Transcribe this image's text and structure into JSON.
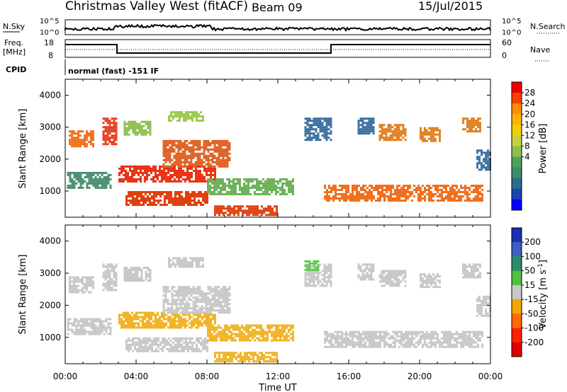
{
  "header": {
    "title": "Christmas Valley West (fitACF)",
    "beam": "Beam 09",
    "date": "15/Jul/2015"
  },
  "top_panels": {
    "nsky_label": "N.Sky",
    "nsky_ticks": [
      "10^5",
      "10^0"
    ],
    "nsearch_label": "N.Search",
    "nsearch_ticks": [
      "10^5",
      "10^0"
    ],
    "freq_label": "Freq.",
    "freq_unit": "[MHz]",
    "freq_ticks": [
      "18",
      "8"
    ],
    "nave_label": "Nave",
    "nave_ticks": [
      "60",
      "0"
    ],
    "cpid_label": "CPID",
    "cpid_text": "normal (fast) -151 IF"
  },
  "chart_data": [
    {
      "type": "heatmap",
      "ylabel": "Slant Range [km]",
      "xlabel": "Time UT",
      "x_ticks": [
        "00:00",
        "04:00",
        "08:00",
        "12:00",
        "16:00",
        "20:00",
        "00:00"
      ],
      "y_ticks": [
        4000,
        3000,
        2000,
        1000
      ],
      "xlim_hours": [
        0,
        24
      ],
      "ylim_km": [
        180,
        4500
      ],
      "colorbar": {
        "label": "Power [dB]",
        "ticks": [
          28,
          24,
          20,
          16,
          12,
          8,
          4
        ],
        "colors": [
          "#ee0000",
          "#ff4000",
          "#ff8c00",
          "#ffb000",
          "#f0d000",
          "#c8d040",
          "#8cc050",
          "#50a060",
          "#3c8c6c",
          "#2a6c8c",
          "#1a44b4",
          "#0000ff"
        ]
      },
      "regions": [
        {
          "x": [
            0.2,
            1.6
          ],
          "y": [
            2400,
            2900
          ],
          "color": "#f07020"
        },
        {
          "x": [
            2.1,
            2.9
          ],
          "y": [
            2500,
            3300
          ],
          "color": "#e84020"
        },
        {
          "x": [
            0.1,
            2.6
          ],
          "y": [
            1100,
            1600
          ],
          "color": "#4a9070"
        },
        {
          "x": [
            3.0,
            8.5
          ],
          "y": [
            1300,
            1800
          ],
          "color": "#e83010"
        },
        {
          "x": [
            5.5,
            9.3
          ],
          "y": [
            1800,
            2600
          ],
          "color": "#e06020"
        },
        {
          "x": [
            3.3,
            4.8
          ],
          "y": [
            2800,
            3200
          ],
          "color": "#8cc050"
        },
        {
          "x": [
            5.8,
            7.8
          ],
          "y": [
            3200,
            3500
          ],
          "color": "#a0c850"
        },
        {
          "x": [
            3.4,
            8.0
          ],
          "y": [
            600,
            1000
          ],
          "color": "#e04010"
        },
        {
          "x": [
            8.0,
            12.9
          ],
          "y": [
            900,
            1400
          ],
          "color": "#6cb058"
        },
        {
          "x": [
            8.4,
            12.0
          ],
          "y": [
            250,
            550
          ],
          "color": "#e04010"
        },
        {
          "x": [
            13.5,
            15.0
          ],
          "y": [
            2600,
            3300
          ],
          "color": "#3c70a0"
        },
        {
          "x": [
            14.6,
            23.5
          ],
          "y": [
            700,
            1200
          ],
          "color": "#f07020"
        },
        {
          "x": [
            16.5,
            17.4
          ],
          "y": [
            2800,
            3300
          ],
          "color": "#3c70a0"
        },
        {
          "x": [
            17.7,
            19.2
          ],
          "y": [
            2600,
            3100
          ],
          "color": "#e08020"
        },
        {
          "x": [
            20.0,
            21.2
          ],
          "y": [
            2600,
            3000
          ],
          "color": "#e08020"
        },
        {
          "x": [
            22.4,
            23.4
          ],
          "y": [
            2900,
            3300
          ],
          "color": "#e08020"
        },
        {
          "x": [
            23.2,
            24.0
          ],
          "y": [
            1700,
            2300
          ],
          "color": "#3c70a0"
        }
      ]
    },
    {
      "type": "heatmap",
      "ylabel": "Slant Range [km]",
      "xlabel": "Time UT",
      "x_ticks": [
        "00:00",
        "04:00",
        "08:00",
        "12:00",
        "16:00",
        "20:00",
        "00:00"
      ],
      "y_ticks": [
        4000,
        3000,
        2000,
        1000
      ],
      "xlim_hours": [
        0,
        24
      ],
      "ylim_km": [
        180,
        4500
      ],
      "colorbar": {
        "label": "Velocity [m s^-1]",
        "ticks": [
          200,
          100,
          50,
          15,
          -15,
          -50,
          -100,
          -200
        ],
        "colors": [
          "#1a30b0",
          "#3c60c0",
          "#2c8c6c",
          "#50c040",
          "#c8c8c8",
          "#f0a800",
          "#ff6a00",
          "#ff2000",
          "#e00000"
        ]
      },
      "regions": [
        {
          "x": [
            0.2,
            1.6
          ],
          "y": [
            2400,
            2900
          ],
          "color": "#c8c8c8"
        },
        {
          "x": [
            2.1,
            2.9
          ],
          "y": [
            2500,
            3300
          ],
          "color": "#c8c8c8"
        },
        {
          "x": [
            0.1,
            2.6
          ],
          "y": [
            1100,
            1600
          ],
          "color": "#c8c8c8"
        },
        {
          "x": [
            3.0,
            8.5
          ],
          "y": [
            1300,
            1800
          ],
          "color": "#f0b428"
        },
        {
          "x": [
            5.5,
            9.3
          ],
          "y": [
            1800,
            2600
          ],
          "color": "#c8c8c8"
        },
        {
          "x": [
            3.3,
            4.8
          ],
          "y": [
            2800,
            3200
          ],
          "color": "#c8c8c8"
        },
        {
          "x": [
            5.8,
            7.8
          ],
          "y": [
            3200,
            3500
          ],
          "color": "#c8c8c8"
        },
        {
          "x": [
            3.4,
            8.0
          ],
          "y": [
            600,
            1000
          ],
          "color": "#c8c8c8"
        },
        {
          "x": [
            8.0,
            12.9
          ],
          "y": [
            900,
            1400
          ],
          "color": "#f0b428"
        },
        {
          "x": [
            8.4,
            12.0
          ],
          "y": [
            250,
            550
          ],
          "color": "#f0b428"
        },
        {
          "x": [
            13.5,
            15.0
          ],
          "y": [
            2600,
            3300
          ],
          "color": "#c8c8c8"
        },
        {
          "x": [
            14.6,
            23.5
          ],
          "y": [
            700,
            1200
          ],
          "color": "#c8c8c8"
        },
        {
          "x": [
            16.5,
            17.4
          ],
          "y": [
            2800,
            3300
          ],
          "color": "#c8c8c8"
        },
        {
          "x": [
            17.7,
            19.2
          ],
          "y": [
            2600,
            3100
          ],
          "color": "#c8c8c8"
        },
        {
          "x": [
            20.0,
            21.2
          ],
          "y": [
            2600,
            3000
          ],
          "color": "#c8c8c8"
        },
        {
          "x": [
            22.4,
            23.4
          ],
          "y": [
            2900,
            3300
          ],
          "color": "#c8c8c8"
        },
        {
          "x": [
            23.2,
            24.0
          ],
          "y": [
            1700,
            2300
          ],
          "color": "#c8c8c8"
        },
        {
          "x": [
            13.5,
            14.3
          ],
          "y": [
            3100,
            3400
          ],
          "color": "#60c850"
        }
      ]
    }
  ]
}
